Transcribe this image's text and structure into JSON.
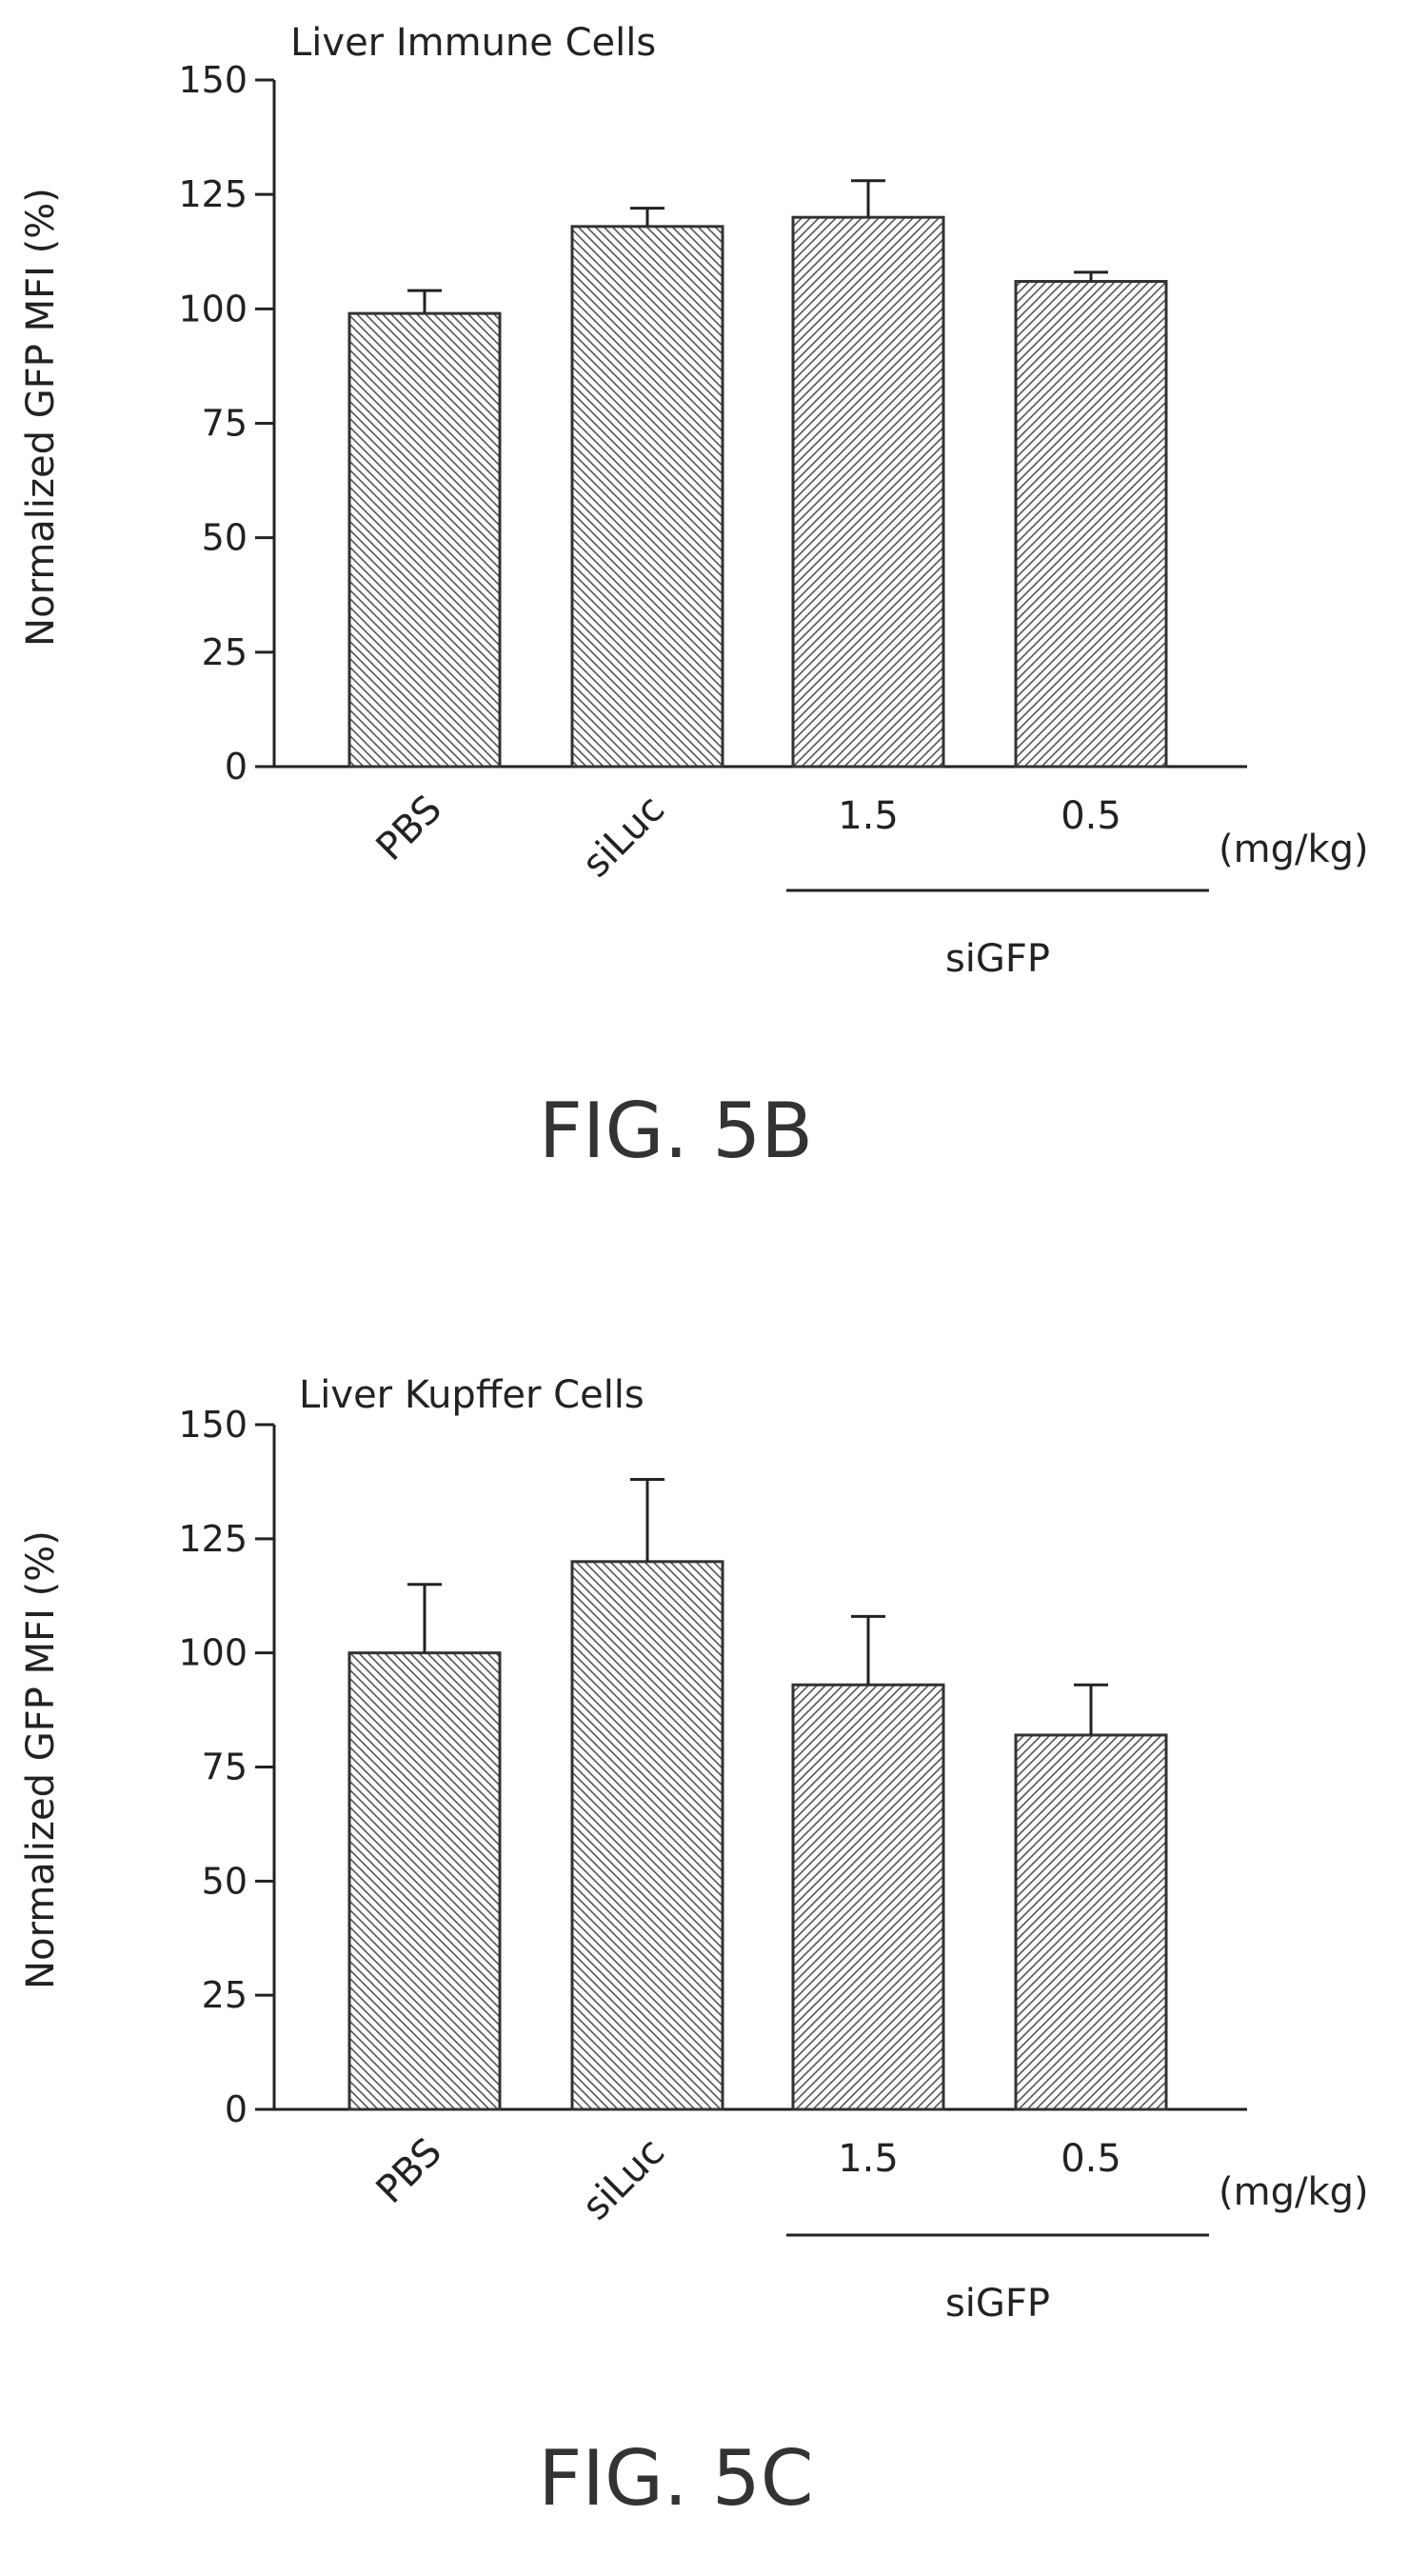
{
  "chart_data": [
    {
      "type": "bar",
      "title": "Liver Immune Cells",
      "ylabel": "Normalized GFP MFI (%)",
      "ylim": [
        0,
        150
      ],
      "yticks": [
        "0",
        "25",
        "50",
        "75",
        "100",
        "125",
        "150"
      ],
      "categories": [
        "PBS",
        "siLuc",
        "1.5",
        "0.5"
      ],
      "values": [
        99,
        118,
        120,
        106
      ],
      "errors": [
        5,
        4,
        8,
        2
      ],
      "hatch": [
        "back",
        "back",
        "forward",
        "forward"
      ],
      "unit_label": "(mg/kg)",
      "group_label": "siGFP",
      "caption": "FIG. 5B"
    },
    {
      "type": "bar",
      "title": "Liver Kupffer Cells",
      "ylabel": "Normalized GFP MFI (%)",
      "ylim": [
        0,
        150
      ],
      "yticks": [
        "0",
        "25",
        "50",
        "75",
        "100",
        "125",
        "150"
      ],
      "categories": [
        "PBS",
        "siLuc",
        "1.5",
        "0.5"
      ],
      "values": [
        100,
        120,
        93,
        82
      ],
      "errors": [
        15,
        18,
        15,
        11
      ],
      "hatch": [
        "back",
        "back",
        "forward",
        "forward"
      ],
      "unit_label": "(mg/kg)",
      "group_label": "siGFP",
      "caption": "FIG. 5C"
    }
  ]
}
